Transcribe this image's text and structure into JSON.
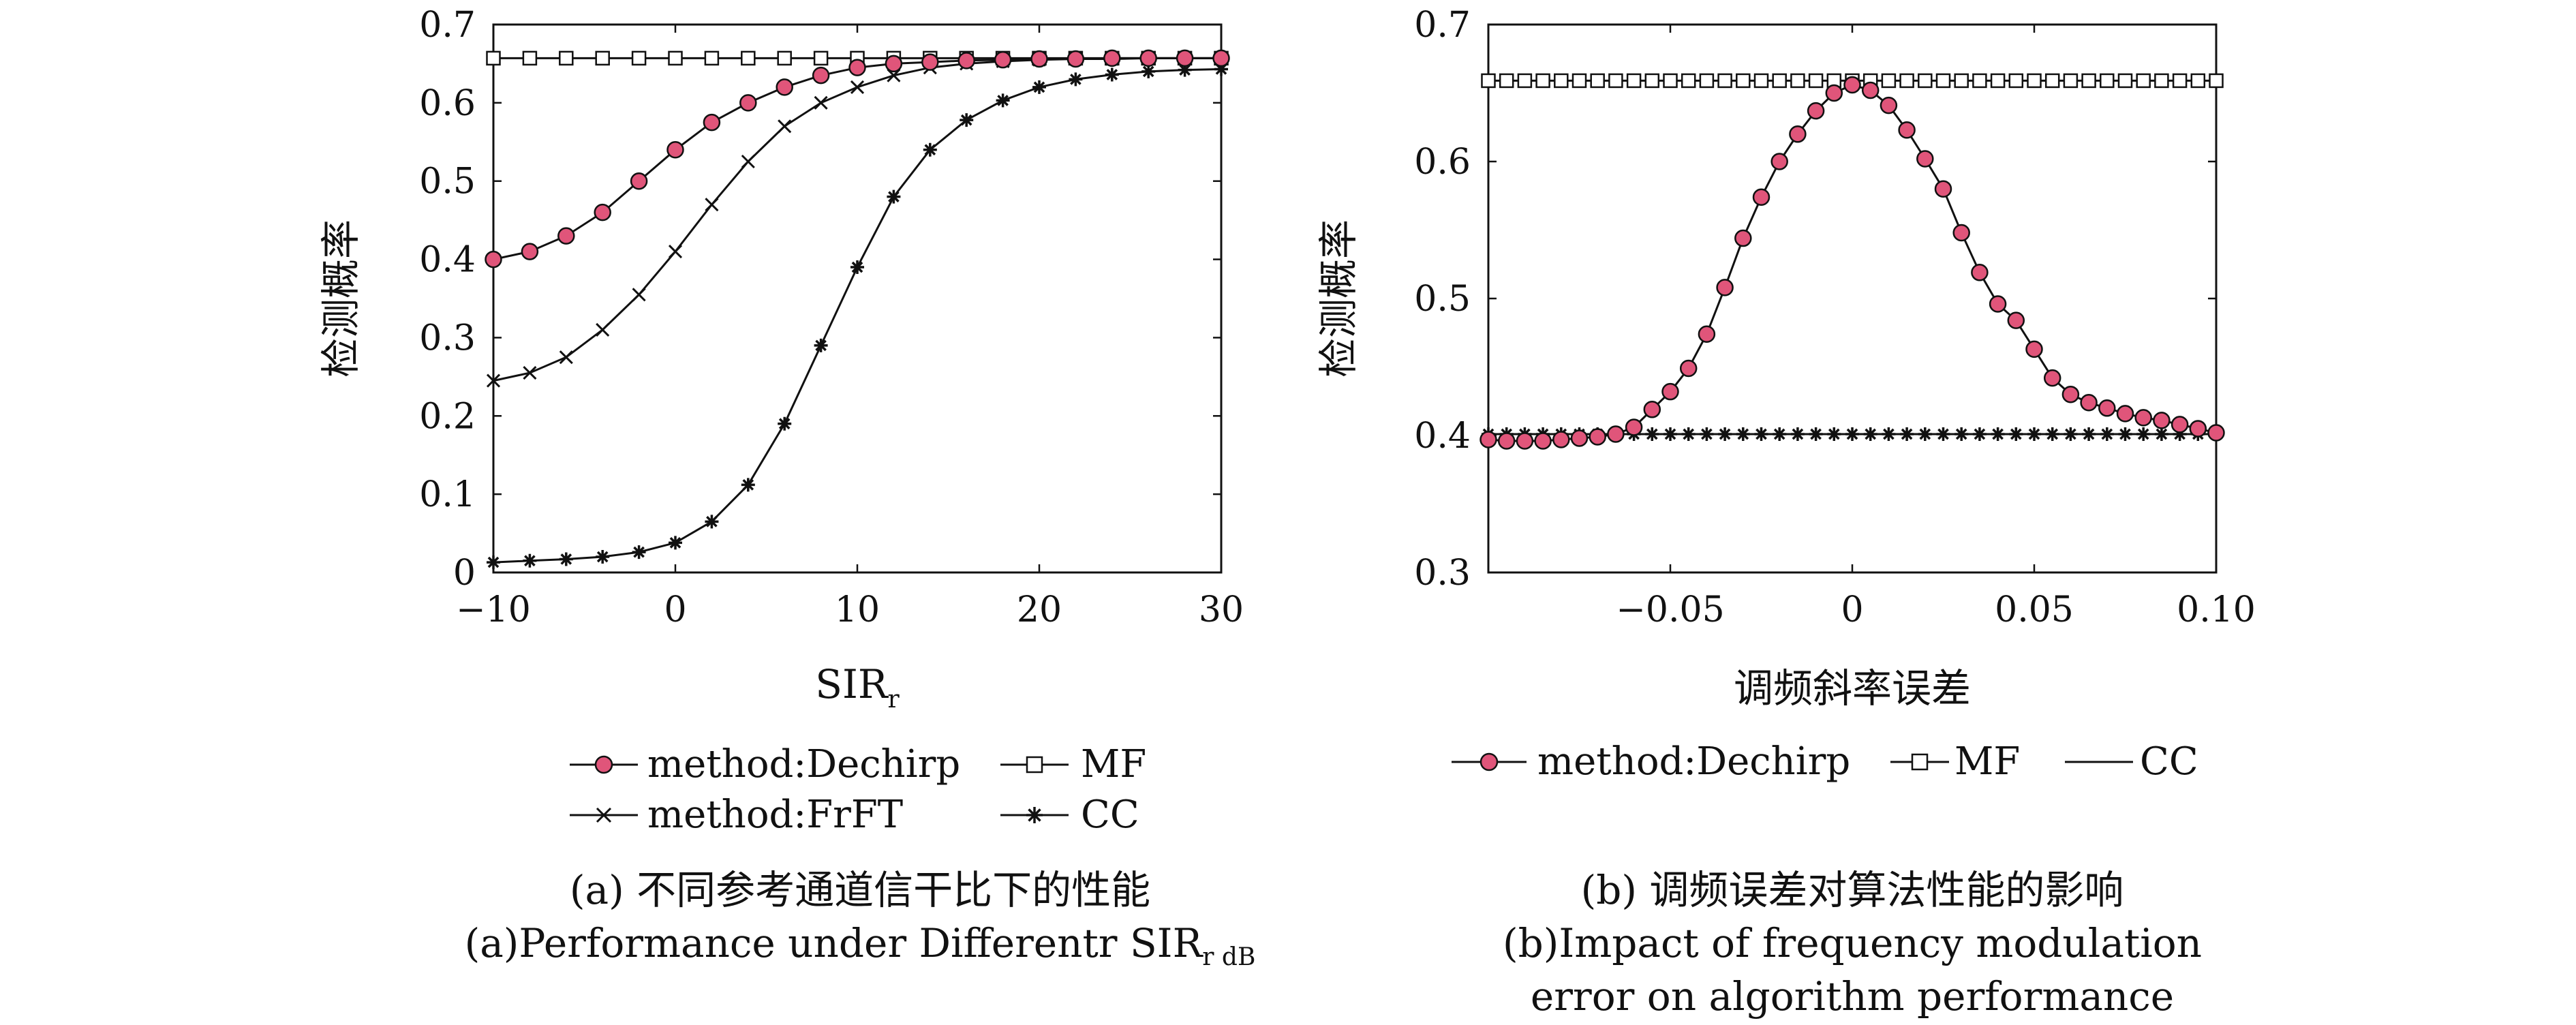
{
  "chart_data": [
    {
      "type": "line",
      "panel": "a",
      "xlabel": "SIR",
      "xlabel_sub": "r",
      "ylabel": "检测概率",
      "xlim": [
        -10,
        30
      ],
      "ylim": [
        0,
        0.7
      ],
      "xticks": [
        -10,
        0,
        10,
        20,
        30
      ],
      "xtick_labels": [
        "−10",
        "0",
        "10",
        "20",
        "30"
      ],
      "yticks": [
        0,
        0.1,
        0.2,
        0.3,
        0.4,
        0.5,
        0.6,
        0.7
      ],
      "ytick_labels": [
        "0",
        "0.1",
        "0.2",
        "0.3",
        "0.4",
        "0.5",
        "0.6",
        "0.7"
      ],
      "grid": false,
      "legend_position": "below",
      "x": [
        -10,
        -8,
        -6,
        -4,
        -2,
        0,
        2,
        4,
        6,
        8,
        10,
        12,
        14,
        16,
        18,
        20,
        22,
        24,
        26,
        28,
        30
      ],
      "series": [
        {
          "name": "method:Dechirp",
          "marker": "circle",
          "color": "#e0557a",
          "values": [
            0.4,
            0.41,
            0.43,
            0.46,
            0.5,
            0.54,
            0.575,
            0.6,
            0.62,
            0.635,
            0.645,
            0.65,
            0.652,
            0.654,
            0.655,
            0.656,
            0.656,
            0.657,
            0.657,
            0.657,
            0.657
          ]
        },
        {
          "name": "MF",
          "marker": "square",
          "color": "#111111",
          "values": [
            0.657,
            0.657,
            0.657,
            0.657,
            0.657,
            0.657,
            0.657,
            0.657,
            0.657,
            0.657,
            0.657,
            0.657,
            0.657,
            0.657,
            0.657,
            0.657,
            0.657,
            0.657,
            0.657,
            0.657,
            0.657
          ]
        },
        {
          "name": "method:FrFT",
          "marker": "x",
          "color": "#111111",
          "values": [
            0.245,
            0.255,
            0.275,
            0.31,
            0.355,
            0.41,
            0.47,
            0.525,
            0.57,
            0.6,
            0.62,
            0.635,
            0.645,
            0.65,
            0.653,
            0.655,
            0.656,
            0.656,
            0.657,
            0.657,
            0.657
          ]
        },
        {
          "name": "CC",
          "marker": "asterisk",
          "color": "#111111",
          "values": [
            0.013,
            0.015,
            0.017,
            0.02,
            0.026,
            0.038,
            0.065,
            0.112,
            0.19,
            0.29,
            0.39,
            0.48,
            0.54,
            0.578,
            0.603,
            0.62,
            0.63,
            0.636,
            0.64,
            0.642,
            0.643
          ]
        }
      ],
      "caption_cn": "(a) 不同参考通道信干比下的性能",
      "caption_en": "(a)Performance under Differentr SIR",
      "caption_en_sub": "r dB"
    },
    {
      "type": "line",
      "panel": "b",
      "xlabel": "调频斜率误差",
      "ylabel": "检测概率",
      "xlim": [
        -0.1,
        0.1
      ],
      "ylim": [
        0.3,
        0.7
      ],
      "xticks": [
        -0.05,
        0,
        0.05,
        0.1
      ],
      "xtick_labels": [
        "−0.05",
        "0",
        "0.05",
        "0.10"
      ],
      "yticks": [
        0.3,
        0.4,
        0.5,
        0.6,
        0.7
      ],
      "ytick_labels": [
        "0.3",
        "0.4",
        "0.5",
        "0.6",
        "0.7"
      ],
      "grid": false,
      "legend_position": "below",
      "x": [
        -0.1,
        -0.095,
        -0.09,
        -0.085,
        -0.08,
        -0.075,
        -0.07,
        -0.065,
        -0.06,
        -0.055,
        -0.05,
        -0.045,
        -0.04,
        -0.035,
        -0.03,
        -0.025,
        -0.02,
        -0.015,
        -0.01,
        -0.005,
        0,
        0.005,
        0.01,
        0.015,
        0.02,
        0.025,
        0.03,
        0.035,
        0.04,
        0.045,
        0.05,
        0.055,
        0.06,
        0.065,
        0.07,
        0.075,
        0.08,
        0.085,
        0.09,
        0.095,
        0.1
      ],
      "series": [
        {
          "name": "method:Dechirp",
          "marker": "circle",
          "color": "#e0557a",
          "values": [
            0.397,
            0.396,
            0.396,
            0.396,
            0.397,
            0.398,
            0.399,
            0.401,
            0.406,
            0.419,
            0.432,
            0.449,
            0.474,
            0.508,
            0.544,
            0.574,
            0.6,
            0.62,
            0.637,
            0.65,
            0.656,
            0.652,
            0.641,
            0.623,
            0.602,
            0.58,
            0.548,
            0.519,
            0.496,
            0.484,
            0.463,
            0.442,
            0.43,
            0.424,
            0.42,
            0.416,
            0.413,
            0.411,
            0.408,
            0.405,
            0.402
          ]
        },
        {
          "name": "MF",
          "marker": "square",
          "color": "#111111",
          "values": [
            0.659,
            0.659,
            0.659,
            0.659,
            0.659,
            0.659,
            0.659,
            0.659,
            0.659,
            0.659,
            0.659,
            0.659,
            0.659,
            0.659,
            0.659,
            0.659,
            0.659,
            0.659,
            0.659,
            0.659,
            0.659,
            0.659,
            0.659,
            0.659,
            0.659,
            0.659,
            0.659,
            0.659,
            0.659,
            0.659,
            0.659,
            0.659,
            0.659,
            0.659,
            0.659,
            0.659,
            0.659,
            0.659,
            0.659,
            0.659,
            0.659
          ]
        },
        {
          "name": "CC",
          "marker": "asterisk",
          "color": "#111111",
          "legend_marker": "none",
          "values": [
            0.401,
            0.401,
            0.401,
            0.401,
            0.401,
            0.401,
            0.401,
            0.401,
            0.401,
            0.401,
            0.401,
            0.401,
            0.401,
            0.401,
            0.401,
            0.401,
            0.401,
            0.401,
            0.401,
            0.401,
            0.401,
            0.401,
            0.401,
            0.401,
            0.401,
            0.401,
            0.401,
            0.401,
            0.401,
            0.401,
            0.401,
            0.401,
            0.401,
            0.401,
            0.401,
            0.401,
            0.401,
            0.401,
            0.401,
            0.401,
            0.401
          ]
        }
      ],
      "caption_cn": "(b) 调频误差对算法性能的影响",
      "caption_en": "(b)Impact of frequency modulation",
      "caption_en2": "error on algorithm performance"
    }
  ]
}
